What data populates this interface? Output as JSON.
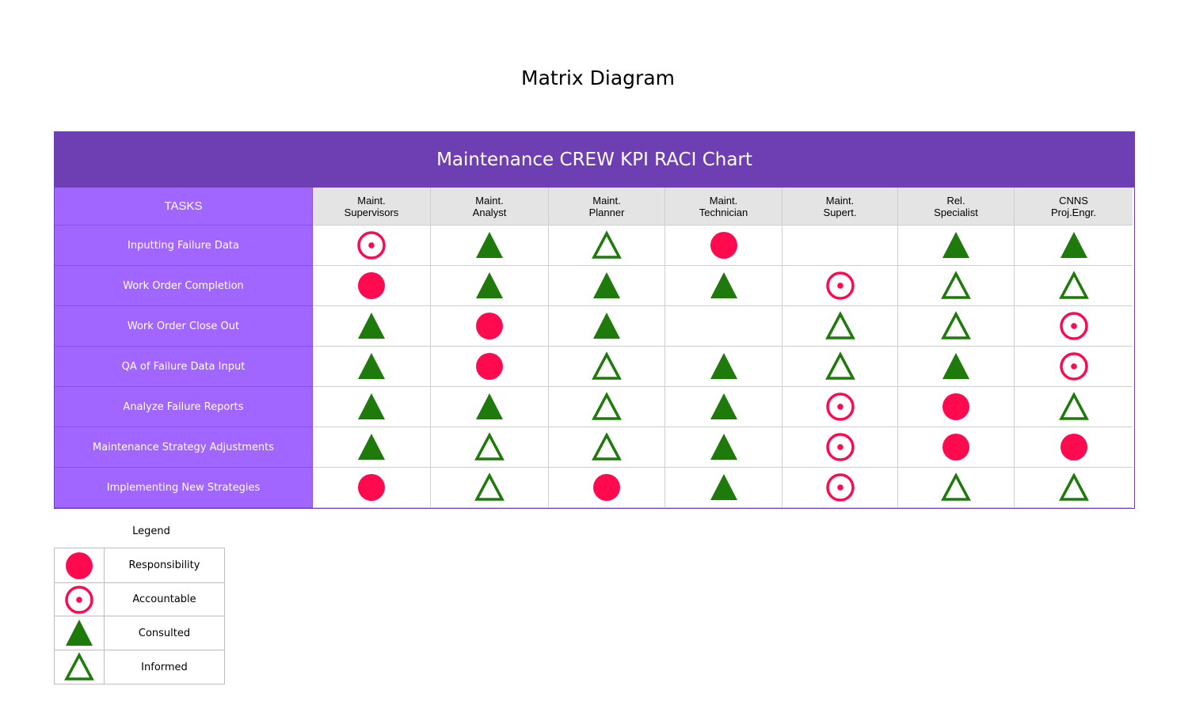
{
  "title": "Matrix Diagram",
  "chart": {
    "title": "Maintenance CREW KPI RACI Chart",
    "tasks_header": "TASKS",
    "roles": [
      {
        "line1": "Maint.",
        "line2": "Supervisors"
      },
      {
        "line1": "Maint.",
        "line2": "Analyst"
      },
      {
        "line1": "Maint.",
        "line2": "Planner"
      },
      {
        "line1": "Maint.",
        "line2": "Technician"
      },
      {
        "line1": "Maint.",
        "line2": "Supert."
      },
      {
        "line1": "Rel.",
        "line2": "Specialist"
      },
      {
        "line1": "CNNS",
        "line2": "Proj.Engr."
      }
    ],
    "rows": [
      {
        "task": "Inputting Failure Data",
        "cells": [
          "A",
          "C",
          "I",
          "R",
          "",
          "C",
          "C"
        ]
      },
      {
        "task": "Work Order Completion",
        "cells": [
          "R",
          "C",
          "C",
          "C",
          "A",
          "I",
          "I"
        ]
      },
      {
        "task": "Work Order Close Out",
        "cells": [
          "C",
          "R",
          "C",
          "",
          "I",
          "I",
          "A"
        ]
      },
      {
        "task": "QA of Failure Data Input",
        "cells": [
          "C",
          "R",
          "I",
          "C",
          "I",
          "C",
          "A"
        ]
      },
      {
        "task": "Analyze Failure Reports",
        "cells": [
          "C",
          "C",
          "I",
          "C",
          "A",
          "R",
          "I"
        ]
      },
      {
        "task": "Maintenance Strategy Adjustments",
        "cells": [
          "C",
          "I",
          "I",
          "C",
          "A",
          "R",
          "R"
        ]
      },
      {
        "task": "Implementing New Strategies",
        "cells": [
          "R",
          "I",
          "R",
          "C",
          "A",
          "I",
          "I"
        ]
      }
    ]
  },
  "legend": {
    "title": "Legend",
    "items": [
      {
        "code": "R",
        "label": "Responsibility",
        "icon": "filled-circle-icon"
      },
      {
        "code": "A",
        "label": "Accountable",
        "icon": "circle-dot-icon"
      },
      {
        "code": "C",
        "label": "Consulted",
        "icon": "filled-triangle-icon"
      },
      {
        "code": "I",
        "label": "Informed",
        "icon": "outline-triangle-icon"
      }
    ]
  },
  "colors": {
    "banner": "#6e3eb3",
    "task_column": "#a066ff",
    "role_header": "#e4e4e4",
    "responsibility": "#ff0a4f",
    "consulted": "#1e7a0a"
  }
}
